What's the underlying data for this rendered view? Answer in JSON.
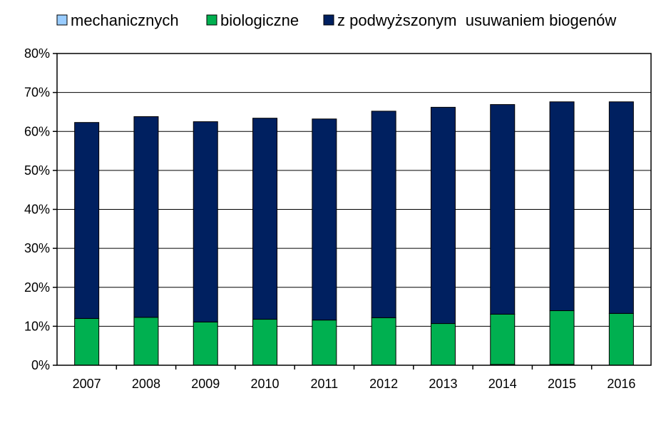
{
  "chart_data": {
    "type": "bar",
    "stacked": true,
    "categories": [
      "2007",
      "2008",
      "2009",
      "2010",
      "2011",
      "2012",
      "2013",
      "2014",
      "2015",
      "2016"
    ],
    "series": [
      {
        "name": "mechanicznych",
        "color": "#99ccff",
        "values": [
          0.0,
          0.0,
          0.0,
          0.0,
          0.0,
          0.0,
          0.0,
          0.2,
          0.2,
          0.0
        ]
      },
      {
        "name": "biologiczne",
        "color": "#00b050",
        "values": [
          12.0,
          12.3,
          11.1,
          11.8,
          11.6,
          12.2,
          10.7,
          12.9,
          13.8,
          13.3
        ]
      },
      {
        "name": "z podwyższonym  usuwaniem biogenów",
        "color": "#002060",
        "values": [
          50.3,
          51.5,
          51.4,
          51.6,
          51.6,
          53.0,
          55.5,
          53.8,
          53.6,
          54.3
        ]
      }
    ],
    "ylim": [
      0,
      80
    ],
    "yticks": [
      "0%",
      "10%",
      "20%",
      "30%",
      "40%",
      "50%",
      "60%",
      "70%",
      "80%"
    ],
    "ytick_values": [
      0,
      10,
      20,
      30,
      40,
      50,
      60,
      70,
      80
    ],
    "grid": true,
    "legend_position": "top"
  }
}
